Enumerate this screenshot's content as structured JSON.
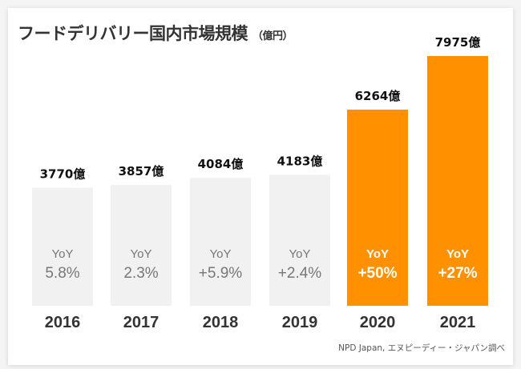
{
  "chart_data": {
    "type": "bar",
    "title": "フードデリバリー国内市場規模",
    "unit_label": "（億円）",
    "categories": [
      "2016",
      "2017",
      "2018",
      "2019",
      "2020",
      "2021"
    ],
    "values": [
      3770,
      3857,
      4084,
      4183,
      6264,
      7975
    ],
    "value_labels": [
      "3770億",
      "3857億",
      "4084億",
      "4183億",
      "6264億",
      "7975億"
    ],
    "yoy_label": "YoY",
    "yoy": [
      "5.8%",
      "2.3%",
      "+5.9%",
      "+2.4%",
      "+50%",
      "+27%"
    ],
    "highlighted": [
      false,
      false,
      false,
      false,
      true,
      true
    ],
    "ylim": [
      0,
      7975
    ],
    "grid": false,
    "colors": {
      "normal": "#f1f1f1",
      "highlight": "#ff9100",
      "normal_text": "#777777",
      "highlight_text": "#ffffff"
    },
    "source": "NPD Japan, エヌピーディー・ジャパン調べ"
  }
}
